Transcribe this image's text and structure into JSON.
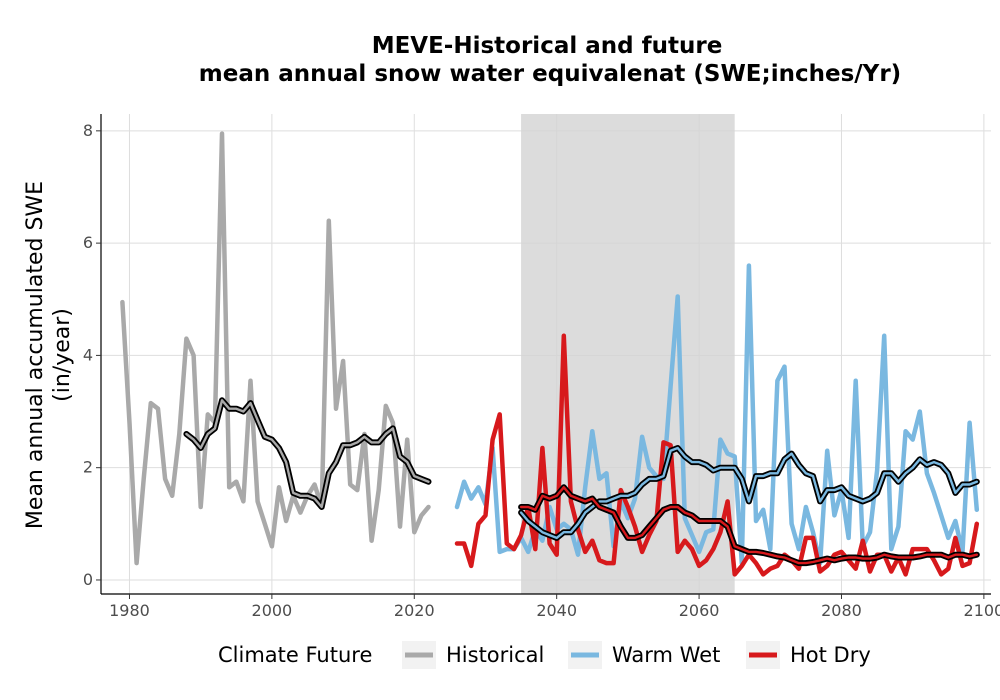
{
  "chart_data": {
    "type": "line",
    "title_line1": "MEVE-Historical and future",
    "title_line2": "mean annual snow water equivalenat (SWE;inches/Yr)",
    "ylabel_line1": "Mean annual accumulated SWE",
    "ylabel_line2": "(in/year)",
    "xlabel": "",
    "xlim": [
      1976,
      2101
    ],
    "ylim": [
      -0.25,
      8.3
    ],
    "x_ticks": [
      1980,
      2000,
      2020,
      2040,
      2060,
      2080,
      2100
    ],
    "y_ticks": [
      0,
      2,
      4,
      6,
      8
    ],
    "shaded_period": [
      2035,
      2065
    ],
    "grid": true,
    "legend": {
      "title": "Climate Future",
      "position": "bottom",
      "entries": [
        {
          "label": "Historical",
          "color": "#a9a9a9"
        },
        {
          "label": "Warm Wet",
          "color": "#7ab8e0"
        },
        {
          "label": "Hot Dry",
          "color": "#d7191c"
        }
      ]
    },
    "series": [
      {
        "name": "Historical",
        "color": "#a9a9a9",
        "x": [
          1979,
          1980,
          1981,
          1982,
          1983,
          1984,
          1985,
          1986,
          1987,
          1988,
          1989,
          1990,
          1991,
          1992,
          1993,
          1994,
          1995,
          1996,
          1997,
          1998,
          1999,
          2000,
          2001,
          2002,
          2003,
          2004,
          2005,
          2006,
          2007,
          2008,
          2009,
          2010,
          2011,
          2012,
          2013,
          2014,
          2015,
          2016,
          2017,
          2018,
          2019,
          2020,
          2021,
          2022
        ],
        "values": [
          4.95,
          2.8,
          0.3,
          1.8,
          3.15,
          3.05,
          1.8,
          1.5,
          2.6,
          4.3,
          4.0,
          1.3,
          2.95,
          2.8,
          7.95,
          1.65,
          1.75,
          1.4,
          3.55,
          1.4,
          1.0,
          0.6,
          1.65,
          1.05,
          1.5,
          1.2,
          1.5,
          1.7,
          1.3,
          6.4,
          3.05,
          3.9,
          1.7,
          1.6,
          2.6,
          0.7,
          1.6,
          3.1,
          2.8,
          0.95,
          2.5,
          0.85,
          1.15,
          1.3
        ]
      },
      {
        "name": "Historical smoothed",
        "color": "#a9a9a9",
        "x": [
          1988,
          1989,
          1990,
          1991,
          1992,
          1993,
          1994,
          1995,
          1996,
          1997,
          1998,
          1999,
          2000,
          2001,
          2002,
          2003,
          2004,
          2005,
          2006,
          2007,
          2008,
          2009,
          2010,
          2011,
          2012,
          2013,
          2014,
          2015,
          2016,
          2017,
          2018,
          2019,
          2020,
          2021,
          2022
        ],
        "values": [
          2.6,
          2.5,
          2.35,
          2.6,
          2.7,
          3.2,
          3.05,
          3.05,
          3.0,
          3.15,
          2.85,
          2.55,
          2.5,
          2.35,
          2.1,
          1.55,
          1.5,
          1.5,
          1.45,
          1.3,
          1.9,
          2.1,
          2.4,
          2.4,
          2.45,
          2.55,
          2.45,
          2.45,
          2.6,
          2.7,
          2.2,
          2.1,
          1.85,
          1.8,
          1.75
        ]
      },
      {
        "name": "Warm Wet",
        "color": "#7ab8e0",
        "x": [
          2026,
          2027,
          2028,
          2029,
          2030,
          2031,
          2032,
          2033,
          2034,
          2035,
          2036,
          2037,
          2038,
          2039,
          2040,
          2041,
          2042,
          2043,
          2044,
          2045,
          2046,
          2047,
          2048,
          2049,
          2050,
          2051,
          2052,
          2053,
          2054,
          2055,
          2056,
          2057,
          2058,
          2059,
          2060,
          2061,
          2062,
          2063,
          2064,
          2065,
          2066,
          2067,
          2068,
          2069,
          2070,
          2071,
          2072,
          2073,
          2074,
          2075,
          2076,
          2077,
          2078,
          2079,
          2080,
          2081,
          2082,
          2083,
          2084,
          2085,
          2086,
          2087,
          2088,
          2089,
          2090,
          2091,
          2092,
          2093,
          2094,
          2095,
          2096,
          2097,
          2098,
          2099
        ],
        "values": [
          1.3,
          1.75,
          1.45,
          1.65,
          1.35,
          2.35,
          0.5,
          0.55,
          0.55,
          0.75,
          0.5,
          0.9,
          0.7,
          1.3,
          0.9,
          1.0,
          0.9,
          0.45,
          1.65,
          2.65,
          1.8,
          1.9,
          0.6,
          1.4,
          1.1,
          1.45,
          2.55,
          2.0,
          1.85,
          1.8,
          3.45,
          5.05,
          1.1,
          0.8,
          0.5,
          0.85,
          0.9,
          2.5,
          2.25,
          2.2,
          0.3,
          5.6,
          1.05,
          1.25,
          0.55,
          3.55,
          3.8,
          1.0,
          0.55,
          1.3,
          0.85,
          0.3,
          2.3,
          1.15,
          1.6,
          0.75,
          3.55,
          0.6,
          0.85,
          1.95,
          4.35,
          0.55,
          0.95,
          2.65,
          2.5,
          3.0,
          1.9,
          1.55,
          1.15,
          0.75,
          1.05,
          0.5,
          2.8,
          1.25
        ]
      },
      {
        "name": "Warm Wet smoothed",
        "color": "#7ab8e0",
        "x": [
          2035,
          2036,
          2037,
          2038,
          2039,
          2040,
          2041,
          2042,
          2043,
          2044,
          2045,
          2046,
          2047,
          2048,
          2049,
          2050,
          2051,
          2052,
          2053,
          2054,
          2055,
          2056,
          2057,
          2058,
          2059,
          2060,
          2061,
          2062,
          2063,
          2064,
          2065,
          2066,
          2067,
          2068,
          2069,
          2070,
          2071,
          2072,
          2073,
          2074,
          2075,
          2076,
          2077,
          2078,
          2079,
          2080,
          2081,
          2082,
          2083,
          2084,
          2085,
          2086,
          2087,
          2088,
          2089,
          2090,
          2091,
          2092,
          2093,
          2094,
          2095,
          2096,
          2097,
          2098,
          2099
        ],
        "values": [
          1.2,
          1.05,
          0.95,
          0.85,
          0.8,
          0.75,
          0.85,
          0.85,
          1.0,
          1.2,
          1.3,
          1.4,
          1.4,
          1.45,
          1.5,
          1.5,
          1.55,
          1.7,
          1.8,
          1.8,
          1.85,
          2.3,
          2.35,
          2.2,
          2.1,
          2.1,
          2.05,
          1.95,
          2.0,
          2.0,
          2.0,
          1.8,
          1.4,
          1.85,
          1.85,
          1.9,
          1.9,
          2.15,
          2.25,
          2.05,
          1.9,
          1.85,
          1.4,
          1.6,
          1.6,
          1.65,
          1.5,
          1.45,
          1.4,
          1.45,
          1.55,
          1.9,
          1.9,
          1.75,
          1.9,
          2.0,
          2.15,
          2.05,
          2.1,
          2.05,
          1.9,
          1.55,
          1.7,
          1.7,
          1.75
        ]
      },
      {
        "name": "Hot Dry",
        "color": "#d7191c",
        "x": [
          2026,
          2027,
          2028,
          2029,
          2030,
          2031,
          2032,
          2033,
          2034,
          2035,
          2036,
          2037,
          2038,
          2039,
          2040,
          2041,
          2042,
          2043,
          2044,
          2045,
          2046,
          2047,
          2048,
          2049,
          2050,
          2051,
          2052,
          2053,
          2054,
          2055,
          2056,
          2057,
          2058,
          2059,
          2060,
          2061,
          2062,
          2063,
          2064,
          2065,
          2066,
          2067,
          2068,
          2069,
          2070,
          2071,
          2072,
          2073,
          2074,
          2075,
          2076,
          2077,
          2078,
          2079,
          2080,
          2081,
          2082,
          2083,
          2084,
          2085,
          2086,
          2087,
          2088,
          2089,
          2090,
          2091,
          2092,
          2093,
          2094,
          2095,
          2096,
          2097,
          2098,
          2099
        ],
        "values": [
          0.65,
          0.65,
          0.25,
          1.0,
          1.15,
          2.5,
          2.95,
          0.65,
          0.55,
          0.8,
          1.3,
          0.55,
          2.35,
          0.65,
          0.45,
          4.35,
          1.4,
          0.9,
          0.5,
          0.7,
          0.35,
          0.3,
          0.3,
          1.6,
          1.3,
          0.95,
          0.5,
          0.8,
          1.05,
          2.45,
          2.4,
          0.5,
          0.7,
          0.55,
          0.25,
          0.35,
          0.55,
          0.85,
          1.4,
          0.1,
          0.25,
          0.45,
          0.3,
          0.1,
          0.2,
          0.25,
          0.45,
          0.35,
          0.2,
          0.75,
          0.75,
          0.15,
          0.25,
          0.45,
          0.5,
          0.35,
          0.2,
          0.7,
          0.15,
          0.45,
          0.45,
          0.15,
          0.4,
          0.1,
          0.55,
          0.55,
          0.55,
          0.35,
          0.1,
          0.2,
          0.75,
          0.25,
          0.3,
          1.0
        ]
      },
      {
        "name": "Hot Dry smoothed",
        "color": "#d7191c",
        "x": [
          2035,
          2036,
          2037,
          2038,
          2039,
          2040,
          2041,
          2042,
          2043,
          2044,
          2045,
          2046,
          2047,
          2048,
          2049,
          2050,
          2051,
          2052,
          2053,
          2054,
          2055,
          2056,
          2057,
          2058,
          2059,
          2060,
          2061,
          2062,
          2063,
          2064,
          2065,
          2066,
          2067,
          2068,
          2069,
          2070,
          2071,
          2072,
          2073,
          2074,
          2075,
          2076,
          2077,
          2078,
          2079,
          2080,
          2081,
          2082,
          2083,
          2084,
          2085,
          2086,
          2087,
          2088,
          2089,
          2090,
          2091,
          2092,
          2093,
          2094,
          2095,
          2096,
          2097,
          2098,
          2099
        ],
        "values": [
          1.3,
          1.3,
          1.25,
          1.5,
          1.45,
          1.5,
          1.65,
          1.5,
          1.45,
          1.4,
          1.45,
          1.3,
          1.25,
          1.2,
          0.95,
          0.75,
          0.75,
          0.8,
          0.95,
          1.1,
          1.25,
          1.3,
          1.3,
          1.2,
          1.15,
          1.05,
          1.05,
          1.05,
          1.05,
          0.95,
          0.6,
          0.55,
          0.5,
          0.5,
          0.48,
          0.45,
          0.42,
          0.4,
          0.35,
          0.3,
          0.3,
          0.32,
          0.35,
          0.38,
          0.35,
          0.38,
          0.4,
          0.4,
          0.38,
          0.38,
          0.4,
          0.45,
          0.42,
          0.4,
          0.4,
          0.4,
          0.42,
          0.45,
          0.45,
          0.45,
          0.4,
          0.45,
          0.45,
          0.42,
          0.45
        ]
      }
    ]
  }
}
